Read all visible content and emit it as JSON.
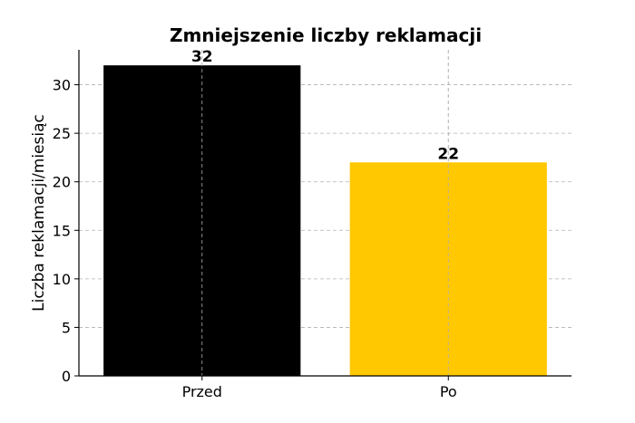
{
  "chart_data": {
    "type": "bar",
    "title": "Zmniejszenie liczby reklamacji",
    "xlabel": "",
    "ylabel": "Liczba reklamacji/miesiąc",
    "categories": [
      "Przed",
      "Po"
    ],
    "values": [
      32,
      22
    ],
    "data_labels": [
      "32",
      "22"
    ],
    "colors": [
      "#000000",
      "#ffc800"
    ],
    "ylim": [
      0,
      33.6
    ],
    "yticks": [
      0,
      5,
      10,
      15,
      20,
      25,
      30
    ],
    "grid": true,
    "legend": "none"
  }
}
